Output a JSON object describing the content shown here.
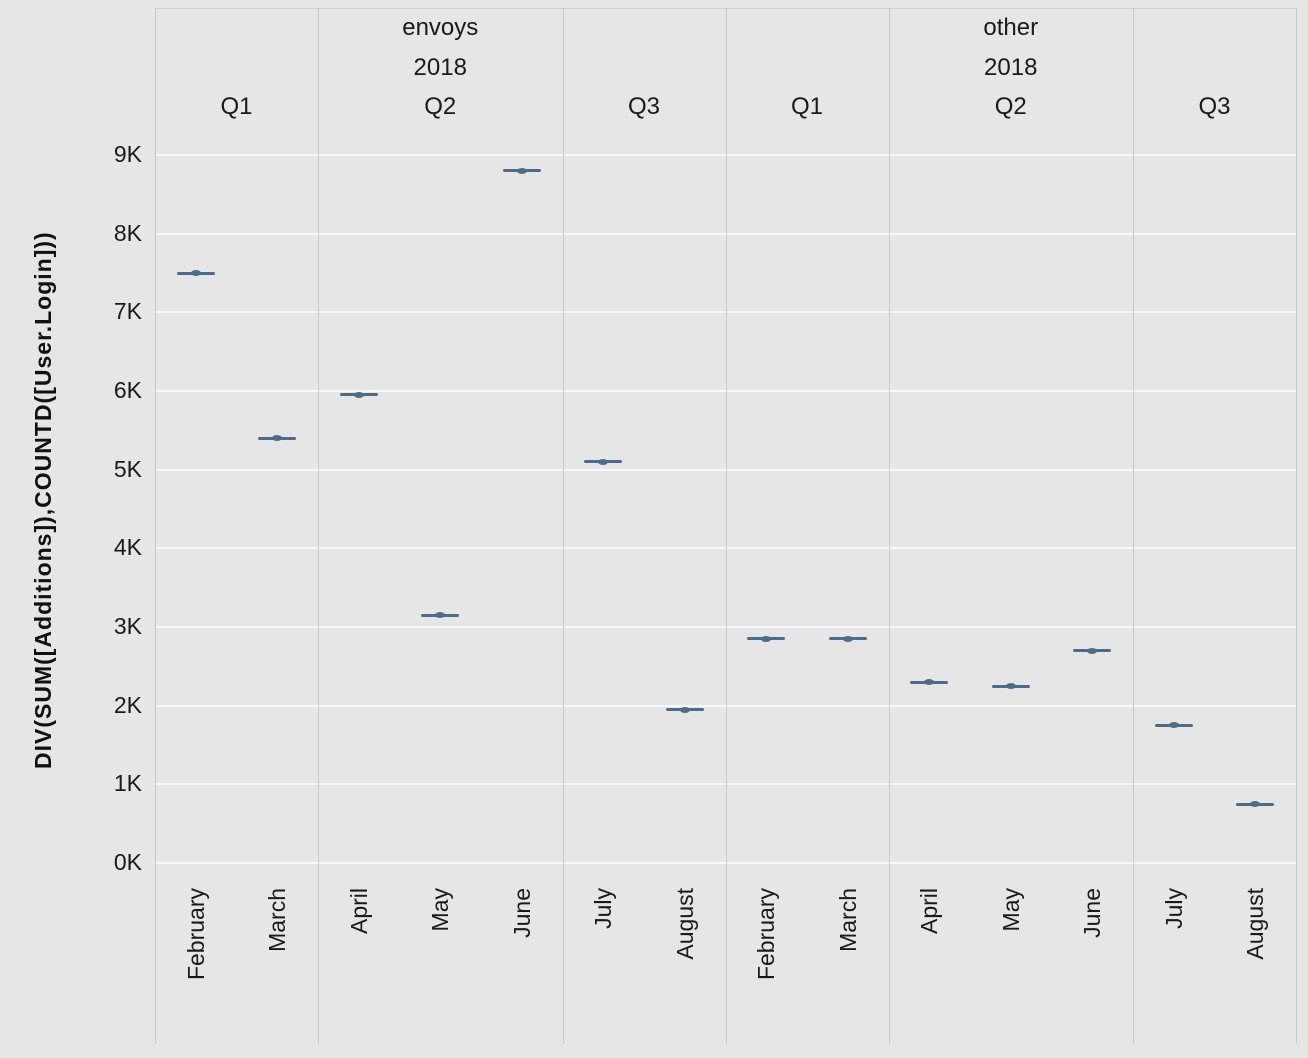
{
  "y_axis": {
    "title": "DIV(SUM([Additions]),COUNTD([User.Login]))",
    "ticks": [
      "9K",
      "8K",
      "7K",
      "6K",
      "5K",
      "4K",
      "3K",
      "2K",
      "1K",
      "0K"
    ]
  },
  "chart_data": {
    "type": "gantt",
    "title": "",
    "ylabel": "DIV(SUM([Additions]),COUNTD([User.Login]))",
    "ylim": [
      0,
      9000
    ],
    "grid": "horizontal",
    "mark_color": "#4d6c8b",
    "background_color": "#e6e6e6",
    "panels": [
      {
        "label": "envoys",
        "year": "2018",
        "quarters": [
          {
            "label": "Q1",
            "months": [
              {
                "label": "February",
                "value": 7500
              },
              {
                "label": "March",
                "value": 5400
              }
            ]
          },
          {
            "label": "Q2",
            "months": [
              {
                "label": "April",
                "value": 5950
              },
              {
                "label": "May",
                "value": 3150
              },
              {
                "label": "June",
                "value": 8800
              }
            ]
          },
          {
            "label": "Q3",
            "months": [
              {
                "label": "July",
                "value": 5100
              },
              {
                "label": "August",
                "value": 1950
              }
            ]
          }
        ]
      },
      {
        "label": "other",
        "year": "2018",
        "quarters": [
          {
            "label": "Q1",
            "months": [
              {
                "label": "February",
                "value": 2850
              },
              {
                "label": "March",
                "value": 2850
              }
            ]
          },
          {
            "label": "Q2",
            "months": [
              {
                "label": "April",
                "value": 2300
              },
              {
                "label": "May",
                "value": 2250
              },
              {
                "label": "June",
                "value": 2700
              }
            ]
          },
          {
            "label": "Q3",
            "months": [
              {
                "label": "July",
                "value": 1750
              },
              {
                "label": "August",
                "value": 750
              }
            ]
          }
        ]
      }
    ]
  }
}
